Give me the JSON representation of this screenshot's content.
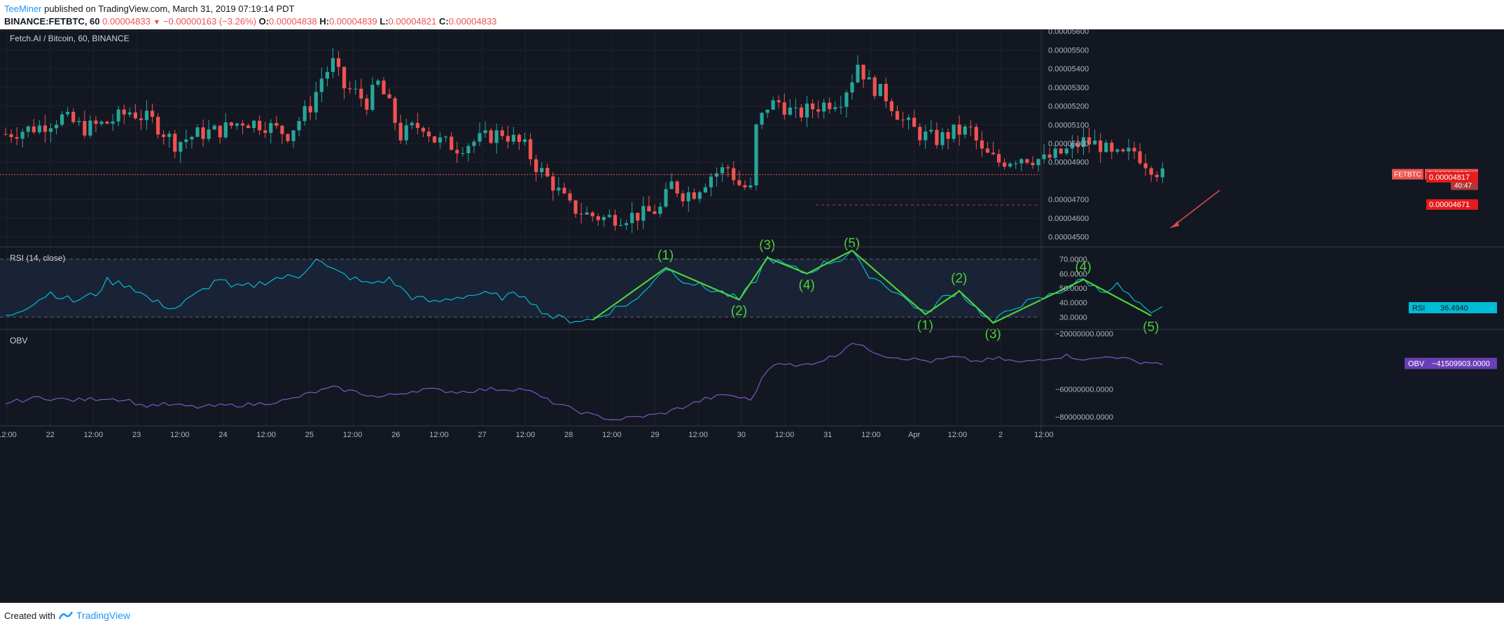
{
  "header": {
    "author": "TeeMiner",
    "published_text": "published on TradingView.com, March 31, 2019 07:19:14 PDT",
    "symbol_line": "BINANCE:FETBTC, 60",
    "last": "0.00004833",
    "change": "−0.00000163 (−3.26%)",
    "o_label": "O:",
    "o": "0.00004838",
    "h_label": "H:",
    "h": "0.00004839",
    "l_label": "L:",
    "l": "0.00004821",
    "c_label": "C:",
    "c": "0.00004833"
  },
  "footer": {
    "created_with": "Created with",
    "brand": "TradingView"
  },
  "colors": {
    "background": "#131722",
    "up": "#26a69a",
    "down": "#ef5350",
    "rsi": "#00bcd4",
    "obv": "#7e57c2",
    "wave": "#4cd137"
  },
  "chart_data": [
    {
      "type": "candlestick",
      "title": "Fetch.AI / Bitcoin, 60, BINANCE",
      "ylim": [
        4.45e-05,
        5.61e-05
      ],
      "y_ticks": [
        "0.00005600",
        "0.00005500",
        "0.00005400",
        "0.00005300",
        "0.00005200",
        "0.00005100",
        "0.00005000",
        "0.00004900",
        "0.00004700",
        "0.00004600",
        "0.00004500"
      ],
      "x_ticks": [
        "12:00",
        "22",
        "12:00",
        "23",
        "12:00",
        "24",
        "12:00",
        "25",
        "12:00",
        "26",
        "12:00",
        "27",
        "12:00",
        "28",
        "12:00",
        "29",
        "12:00",
        "30",
        "12:00",
        "31",
        "12:00",
        "Apr",
        "12:00",
        "2",
        "12:00"
      ],
      "symbol_badge": "FETBTC",
      "last_price": "0.00004833",
      "countdown": "40:47",
      "levels": [
        "0.00004817",
        "0.00004671"
      ],
      "levels_values": [
        4.817e-05,
        4.671e-05
      ],
      "last_price_value": 4.833e-05,
      "anchors": [
        [
          0,
          5.05e-05
        ],
        [
          6,
          5.09e-05
        ],
        [
          10,
          5.14e-05
        ],
        [
          14,
          5.08e-05
        ],
        [
          18,
          5.11e-05
        ],
        [
          22,
          5.17e-05
        ],
        [
          26,
          5.12e-05
        ],
        [
          28,
          5.06e-05
        ],
        [
          30,
          5e-05
        ],
        [
          34,
          5.05e-05
        ],
        [
          38,
          5.07e-05
        ],
        [
          42,
          5.12e-05
        ],
        [
          46,
          5.1e-05
        ],
        [
          50,
          5.05e-05
        ],
        [
          54,
          5.2e-05
        ],
        [
          56,
          5.35e-05
        ],
        [
          58,
          5.43e-05
        ],
        [
          60,
          5.3e-05
        ],
        [
          62,
          5.27e-05
        ],
        [
          64,
          5.22e-05
        ],
        [
          66,
          5.32e-05
        ],
        [
          68,
          5.2e-05
        ],
        [
          70,
          5.04e-05
        ],
        [
          72,
          5.08e-05
        ],
        [
          74,
          5.1e-05
        ],
        [
          76,
          5.02e-05
        ],
        [
          78,
          5e-05
        ],
        [
          80,
          4.98e-05
        ],
        [
          84,
          5.02e-05
        ],
        [
          88,
          5.06e-05
        ],
        [
          92,
          4.98e-05
        ],
        [
          94,
          4.88e-05
        ],
        [
          97,
          4.78e-05
        ],
        [
          100,
          4.66e-05
        ],
        [
          103,
          4.62e-05
        ],
        [
          106,
          4.6e-05
        ],
        [
          110,
          4.61e-05
        ],
        [
          113,
          4.62e-05
        ],
        [
          116,
          4.65e-05
        ],
        [
          118,
          4.78e-05
        ],
        [
          120,
          4.73e-05
        ],
        [
          122,
          4.74e-05
        ],
        [
          125,
          4.83e-05
        ],
        [
          128,
          4.87e-05
        ],
        [
          130,
          4.78e-05
        ],
        [
          132,
          4.75e-05
        ],
        [
          133,
          5.08e-05
        ],
        [
          135,
          5.2e-05
        ],
        [
          137,
          5.22e-05
        ],
        [
          140,
          5.15e-05
        ],
        [
          143,
          5.19e-05
        ],
        [
          146,
          5.22e-05
        ],
        [
          148,
          5.24e-05
        ],
        [
          150,
          5.35e-05
        ],
        [
          151,
          5.43e-05
        ],
        [
          153,
          5.32e-05
        ],
        [
          156,
          5.25e-05
        ],
        [
          159,
          5.12e-05
        ],
        [
          162,
          5.05e-05
        ],
        [
          165,
          5.02e-05
        ],
        [
          168,
          5.06e-05
        ],
        [
          171,
          5.07e-05
        ],
        [
          173,
          4.95e-05
        ],
        [
          176,
          4.9e-05
        ],
        [
          180,
          4.93e-05
        ],
        [
          184,
          4.91e-05
        ],
        [
          188,
          4.96e-05
        ],
        [
          191,
          5.01e-05
        ],
        [
          194,
          4.99e-05
        ],
        [
          196,
          4.93e-05
        ],
        [
          198,
          4.93e-05
        ],
        [
          200,
          4.96e-05
        ],
        [
          202,
          4.9e-05
        ],
        [
          205,
          4.83e-05
        ]
      ]
    },
    {
      "type": "line",
      "title": "RSI (14, close)",
      "ylim": [
        22,
        78
      ],
      "y_ticks": [
        "70.0000",
        "60.0000",
        "50.0000",
        "40.0000",
        "30.0000"
      ],
      "y_tick_values": [
        70,
        60,
        50,
        40,
        30
      ],
      "bands": [
        30,
        70
      ],
      "value_label": "RSI",
      "value": "36.4940",
      "value_num": 36.494,
      "wave_labels": [
        "(1)",
        "(2)",
        "(3)",
        "(4)",
        "(5)",
        "(1)",
        "(2)",
        "(3)",
        "(4)",
        "(5)"
      ],
      "wave1": [
        [
          104,
          28
        ],
        [
          117,
          64
        ],
        [
          130,
          42
        ],
        [
          135,
          71
        ],
        [
          142,
          60
        ],
        [
          150,
          76
        ]
      ],
      "wave2": [
        [
          150,
          76
        ],
        [
          163,
          32
        ],
        [
          169,
          48
        ],
        [
          175,
          26
        ],
        [
          191,
          56
        ],
        [
          203,
          31
        ]
      ],
      "anchors": [
        [
          0,
          30
        ],
        [
          4,
          38
        ],
        [
          8,
          47
        ],
        [
          12,
          41
        ],
        [
          16,
          46
        ],
        [
          18,
          55
        ],
        [
          22,
          52
        ],
        [
          26,
          41
        ],
        [
          30,
          36
        ],
        [
          34,
          46
        ],
        [
          38,
          57
        ],
        [
          40,
          50
        ],
        [
          44,
          52
        ],
        [
          48,
          57
        ],
        [
          52,
          58
        ],
        [
          55,
          71
        ],
        [
          57,
          64
        ],
        [
          60,
          59
        ],
        [
          64,
          53
        ],
        [
          68,
          56
        ],
        [
          72,
          44
        ],
        [
          76,
          40
        ],
        [
          80,
          44
        ],
        [
          84,
          46
        ],
        [
          88,
          44
        ],
        [
          92,
          46
        ],
        [
          94,
          37
        ],
        [
          97,
          30
        ],
        [
          100,
          28
        ],
        [
          104,
          28
        ],
        [
          108,
          36
        ],
        [
          112,
          42
        ],
        [
          115,
          57
        ],
        [
          117,
          64
        ],
        [
          120,
          56
        ],
        [
          124,
          50
        ],
        [
          127,
          47
        ],
        [
          130,
          42
        ],
        [
          133,
          56
        ],
        [
          135,
          71
        ],
        [
          138,
          66
        ],
        [
          142,
          60
        ],
        [
          145,
          67
        ],
        [
          148,
          70
        ],
        [
          150,
          76
        ],
        [
          152,
          62
        ],
        [
          156,
          52
        ],
        [
          160,
          41
        ],
        [
          163,
          32
        ],
        [
          166,
          43
        ],
        [
          169,
          48
        ],
        [
          172,
          36
        ],
        [
          175,
          26
        ],
        [
          179,
          38
        ],
        [
          183,
          42
        ],
        [
          187,
          48
        ],
        [
          191,
          56
        ],
        [
          194,
          48
        ],
        [
          197,
          52
        ],
        [
          200,
          41
        ],
        [
          203,
          31
        ],
        [
          205,
          36
        ]
      ]
    },
    {
      "type": "line",
      "title": "OBV",
      "ylim": [
        -86000000,
        -17500000
      ],
      "y_ticks": [
        "−20000000.0000",
        "−60000000.0000",
        "−80000000.0000"
      ],
      "y_tick_values": [
        -20000000,
        -60000000,
        -80000000
      ],
      "value_label": "OBV",
      "value": "−41509903.0000",
      "value_num": -41509903,
      "anchors": [
        [
          0,
          -70000000
        ],
        [
          6,
          -66000000
        ],
        [
          12,
          -68000000
        ],
        [
          18,
          -66500000
        ],
        [
          22,
          -68000000
        ],
        [
          24,
          -72000000
        ],
        [
          28,
          -71000000
        ],
        [
          34,
          -73000000
        ],
        [
          38,
          -72000000
        ],
        [
          44,
          -71000000
        ],
        [
          50,
          -68000000
        ],
        [
          54,
          -63000000
        ],
        [
          58,
          -59000000
        ],
        [
          62,
          -62000000
        ],
        [
          66,
          -66000000
        ],
        [
          70,
          -63000000
        ],
        [
          74,
          -60000000
        ],
        [
          80,
          -62000000
        ],
        [
          86,
          -60000000
        ],
        [
          92,
          -60000000
        ],
        [
          96,
          -68000000
        ],
        [
          100,
          -74000000
        ],
        [
          104,
          -79000000
        ],
        [
          108,
          -82000000
        ],
        [
          112,
          -80000000
        ],
        [
          116,
          -78000000
        ],
        [
          120,
          -73000000
        ],
        [
          124,
          -67000000
        ],
        [
          128,
          -64000000
        ],
        [
          132,
          -68000000
        ],
        [
          135,
          -46000000
        ],
        [
          137,
          -40000000
        ],
        [
          140,
          -44000000
        ],
        [
          144,
          -40000000
        ],
        [
          147,
          -36000000
        ],
        [
          150,
          -26000000
        ],
        [
          152,
          -30000000
        ],
        [
          156,
          -36000000
        ],
        [
          160,
          -38000000
        ],
        [
          164,
          -40000000
        ],
        [
          168,
          -37000000
        ],
        [
          172,
          -40000000
        ],
        [
          176,
          -38000000
        ],
        [
          180,
          -41000000
        ],
        [
          184,
          -38000000
        ],
        [
          188,
          -36000000
        ],
        [
          192,
          -39000000
        ],
        [
          196,
          -36000000
        ],
        [
          200,
          -40000000
        ],
        [
          205,
          -41500000
        ]
      ]
    }
  ]
}
